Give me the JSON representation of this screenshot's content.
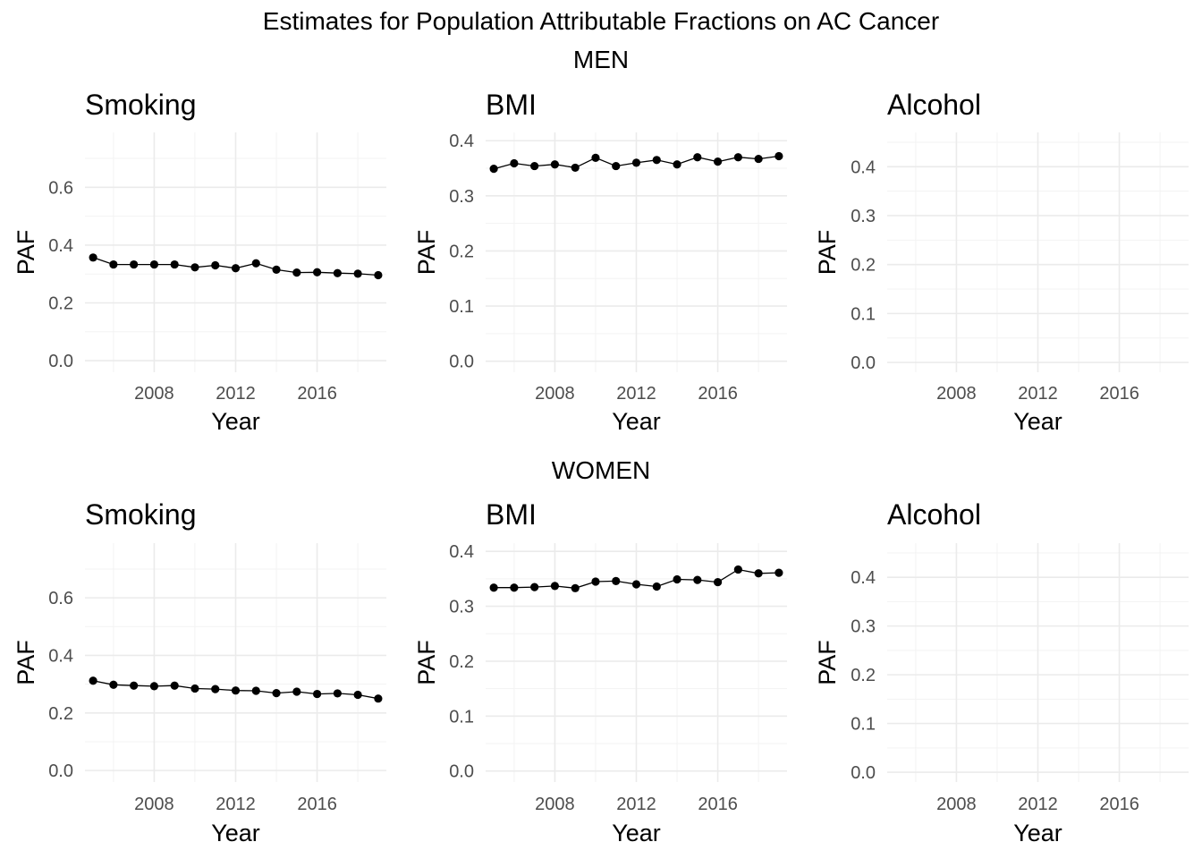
{
  "figure": {
    "title": "Estimates for Population Attributable Fractions on AC Cancer",
    "sections": [
      "MEN",
      "WOMEN"
    ]
  },
  "chart_data": [
    {
      "type": "line",
      "group": "MEN",
      "title": "Smoking",
      "xlabel": "Year",
      "ylabel": "PAF",
      "xlim": [
        2004.6,
        2019.4
      ],
      "ylim": [
        -0.04,
        0.79
      ],
      "xticks": [
        "2008",
        "2012",
        "2016"
      ],
      "yticks": [
        "0.0",
        "0.2",
        "0.4",
        "0.6"
      ],
      "x": [
        2005,
        2006,
        2007,
        2008,
        2009,
        2010,
        2011,
        2012,
        2013,
        2014,
        2015,
        2016,
        2017,
        2018,
        2019
      ],
      "y": [
        0.357,
        0.333,
        0.333,
        0.333,
        0.333,
        0.323,
        0.33,
        0.32,
        0.337,
        0.315,
        0.305,
        0.306,
        0.303,
        0.301,
        0.296
      ],
      "grid": true
    },
    {
      "type": "line",
      "group": "MEN",
      "title": "BMI",
      "xlabel": "Year",
      "ylabel": "PAF",
      "xlim": [
        2004.6,
        2019.4
      ],
      "ylim": [
        -0.02,
        0.415
      ],
      "xticks": [
        "2008",
        "2012",
        "2016"
      ],
      "yticks": [
        "0.0",
        "0.1",
        "0.2",
        "0.3",
        "0.4"
      ],
      "x": [
        2005,
        2006,
        2007,
        2008,
        2009,
        2010,
        2011,
        2012,
        2013,
        2014,
        2015,
        2016,
        2017,
        2018,
        2019
      ],
      "y": [
        0.349,
        0.359,
        0.354,
        0.357,
        0.351,
        0.369,
        0.354,
        0.36,
        0.365,
        0.357,
        0.37,
        0.362,
        0.37,
        0.367,
        0.372
      ],
      "grid": true
    },
    {
      "type": "line",
      "group": "MEN",
      "title": "Alcohol",
      "xlabel": "Year",
      "ylabel": "PAF",
      "xlim": [
        2004.6,
        2019.4
      ],
      "ylim": [
        -0.02,
        0.47
      ],
      "xticks": [
        "2008",
        "2012",
        "2016"
      ],
      "yticks": [
        "0.0",
        "0.1",
        "0.2",
        "0.3",
        "0.4"
      ],
      "x": [],
      "y": [],
      "grid": true
    },
    {
      "type": "line",
      "group": "WOMEN",
      "title": "Smoking",
      "xlabel": "Year",
      "ylabel": "PAF",
      "xlim": [
        2004.6,
        2019.4
      ],
      "ylim": [
        -0.04,
        0.79
      ],
      "xticks": [
        "2008",
        "2012",
        "2016"
      ],
      "yticks": [
        "0.0",
        "0.2",
        "0.4",
        "0.6"
      ],
      "x": [
        2005,
        2006,
        2007,
        2008,
        2009,
        2010,
        2011,
        2012,
        2013,
        2014,
        2015,
        2016,
        2017,
        2018,
        2019
      ],
      "y": [
        0.312,
        0.298,
        0.295,
        0.293,
        0.295,
        0.285,
        0.283,
        0.278,
        0.277,
        0.269,
        0.274,
        0.266,
        0.268,
        0.263,
        0.25
      ],
      "grid": true
    },
    {
      "type": "line",
      "group": "WOMEN",
      "title": "BMI",
      "xlabel": "Year",
      "ylabel": "PAF",
      "xlim": [
        2004.6,
        2019.4
      ],
      "ylim": [
        -0.02,
        0.415
      ],
      "xticks": [
        "2008",
        "2012",
        "2016"
      ],
      "yticks": [
        "0.0",
        "0.1",
        "0.2",
        "0.3",
        "0.4"
      ],
      "x": [
        2005,
        2006,
        2007,
        2008,
        2009,
        2010,
        2011,
        2012,
        2013,
        2014,
        2015,
        2016,
        2017,
        2018,
        2019
      ],
      "y": [
        0.334,
        0.334,
        0.335,
        0.337,
        0.333,
        0.345,
        0.346,
        0.34,
        0.336,
        0.349,
        0.348,
        0.344,
        0.367,
        0.36,
        0.361
      ],
      "grid": true
    },
    {
      "type": "line",
      "group": "WOMEN",
      "title": "Alcohol",
      "xlabel": "Year",
      "ylabel": "PAF",
      "xlim": [
        2004.6,
        2019.4
      ],
      "ylim": [
        -0.02,
        0.47
      ],
      "xticks": [
        "2008",
        "2012",
        "2016"
      ],
      "yticks": [
        "0.0",
        "0.1",
        "0.2",
        "0.3",
        "0.4"
      ],
      "x": [],
      "y": [],
      "grid": true
    }
  ]
}
